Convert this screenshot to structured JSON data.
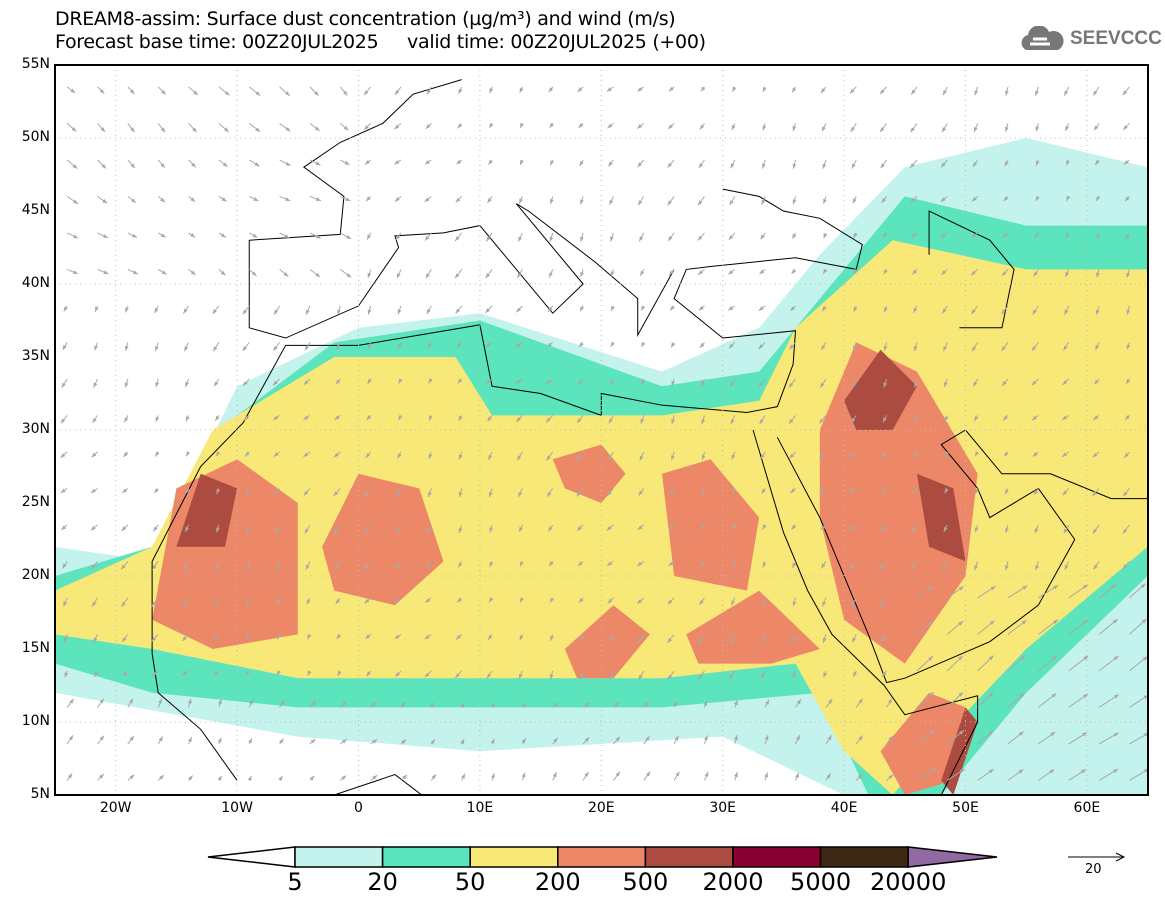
{
  "header": {
    "title": "DREAM8-assim: Surface dust concentration (µg/m³) and wind (m/s)",
    "subtitle": "Forecast base time: 00Z20JUL2025     valid time: 00Z20JUL2025 (+00)",
    "logo": "SEEVCCC"
  },
  "axes": {
    "lat_labels": [
      "55N",
      "50N",
      "45N",
      "40N",
      "35N",
      "30N",
      "25N",
      "20N",
      "15N",
      "10N",
      "5N"
    ],
    "lon_labels": [
      "20W",
      "10W",
      "0",
      "10E",
      "20E",
      "30E",
      "40E",
      "50E",
      "60E"
    ],
    "lon_range": [
      -25,
      65
    ],
    "lat_range": [
      5,
      55
    ]
  },
  "legend": {
    "levels": [
      "5",
      "20",
      "50",
      "200",
      "500",
      "2000",
      "5000",
      "20000"
    ],
    "colors": [
      "#ffffff",
      "#c4f2ec",
      "#5ce4bc",
      "#f8e878",
      "#ec8868",
      "#ac4c40",
      "#880030",
      "#3c2814",
      "#906aa0"
    ],
    "units": "µg/m³"
  },
  "wind_reference": {
    "value": "20"
  }
}
